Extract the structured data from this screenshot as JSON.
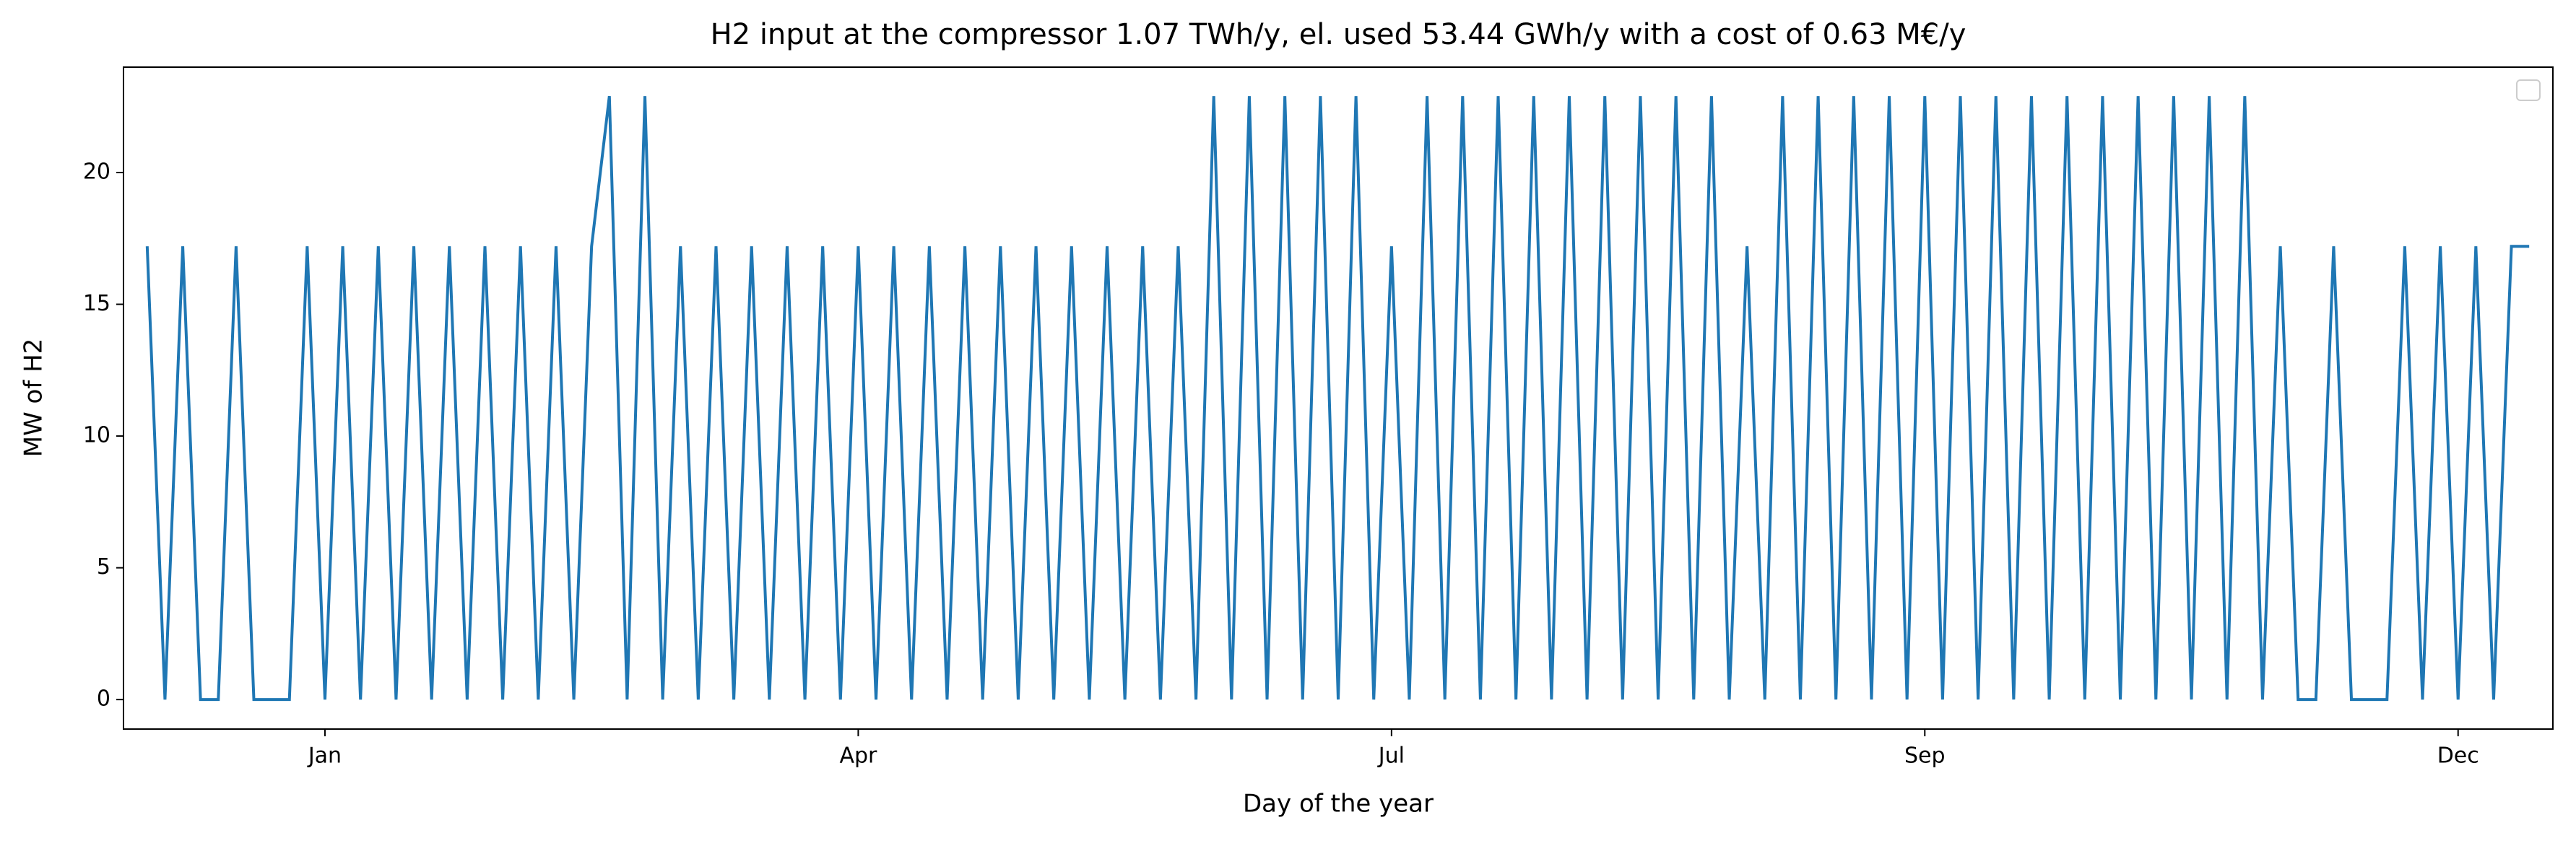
{
  "chart_data": {
    "type": "line",
    "title": "H2 input at the compressor 1.07 TWh/y, el. used 53.44 GWh/y with a cost of 0.63 M€/y",
    "x_label": "Day of the year",
    "y_label": "MW of H2",
    "x": [
      -20,
      -17,
      -14,
      -11,
      -8,
      -5,
      -2,
      1,
      4,
      7,
      10,
      13,
      16,
      19,
      22,
      25,
      28,
      31,
      34,
      37,
      40,
      43,
      46,
      49,
      52,
      55,
      58,
      61,
      64,
      67,
      70,
      73,
      76,
      79,
      82,
      85,
      88,
      91,
      94,
      97,
      100,
      103,
      106,
      109,
      112,
      115,
      118,
      121,
      124,
      127,
      130,
      133,
      136,
      139,
      142,
      145,
      148,
      151,
      154,
      157,
      160,
      163,
      166,
      169,
      172,
      175,
      178,
      181,
      184,
      187,
      190,
      193,
      196,
      199,
      202,
      205,
      208,
      211,
      214,
      217,
      220,
      223,
      226,
      229,
      232,
      235,
      238,
      241,
      244,
      247,
      250,
      253,
      256,
      259,
      262,
      265,
      268,
      271,
      274,
      277,
      280,
      283,
      286,
      289,
      292,
      295,
      298,
      301,
      304,
      307,
      310,
      313,
      316,
      319,
      322,
      325,
      328,
      331,
      334,
      337,
      340,
      343,
      346,
      349,
      352,
      355,
      358,
      361,
      364,
      367,
      370,
      373,
      376,
      379,
      382
    ],
    "series": [
      {
        "color": "#1f77b4",
        "values": [
          17.2,
          0,
          17.2,
          0,
          0,
          17.2,
          0,
          0,
          0,
          17.2,
          0,
          17.2,
          0,
          17.2,
          0,
          17.2,
          0,
          17.2,
          0,
          17.2,
          0,
          17.2,
          0,
          17.2,
          0,
          17.2,
          22.9,
          0,
          22.9,
          0,
          17.2,
          0,
          17.2,
          0,
          17.2,
          0,
          17.2,
          0,
          17.2,
          0,
          17.2,
          0,
          17.2,
          0,
          17.2,
          0,
          17.2,
          0,
          17.2,
          0,
          17.2,
          0,
          17.2,
          0,
          17.2,
          0,
          17.2,
          0,
          17.2,
          0,
          22.9,
          0,
          22.9,
          0,
          22.9,
          0,
          22.9,
          0,
          22.9,
          0,
          17.2,
          0,
          22.9,
          0,
          22.9,
          0,
          22.9,
          0,
          22.9,
          0,
          22.9,
          0,
          22.9,
          0,
          22.9,
          0,
          22.9,
          0,
          22.9,
          0,
          17.2,
          0,
          22.9,
          0,
          22.9,
          0,
          22.9,
          0,
          22.9,
          0,
          22.9,
          0,
          22.9,
          0,
          22.9,
          0,
          22.9,
          0,
          22.9,
          0,
          22.9,
          0,
          22.9,
          0,
          22.9,
          0,
          22.9,
          0,
          22.9,
          0,
          17.2,
          0,
          0,
          17.2,
          0,
          0,
          0,
          17.2,
          0,
          17.2,
          0,
          17.2,
          0,
          17.2,
          17.2
        ]
      }
    ],
    "xlim": [
      -24,
      386
    ],
    "xticks": [
      {
        "value": 10,
        "label": "Jan"
      },
      {
        "value": 100,
        "label": "Apr"
      },
      {
        "value": 190,
        "label": "Jul"
      },
      {
        "value": 280,
        "label": "Sep"
      },
      {
        "value": 370,
        "label": "Dec"
      }
    ],
    "ylim": [
      -1.12,
      24.0
    ],
    "yticks": [
      0,
      5,
      10,
      15,
      20
    ],
    "grid": false,
    "legend": "upper right"
  }
}
